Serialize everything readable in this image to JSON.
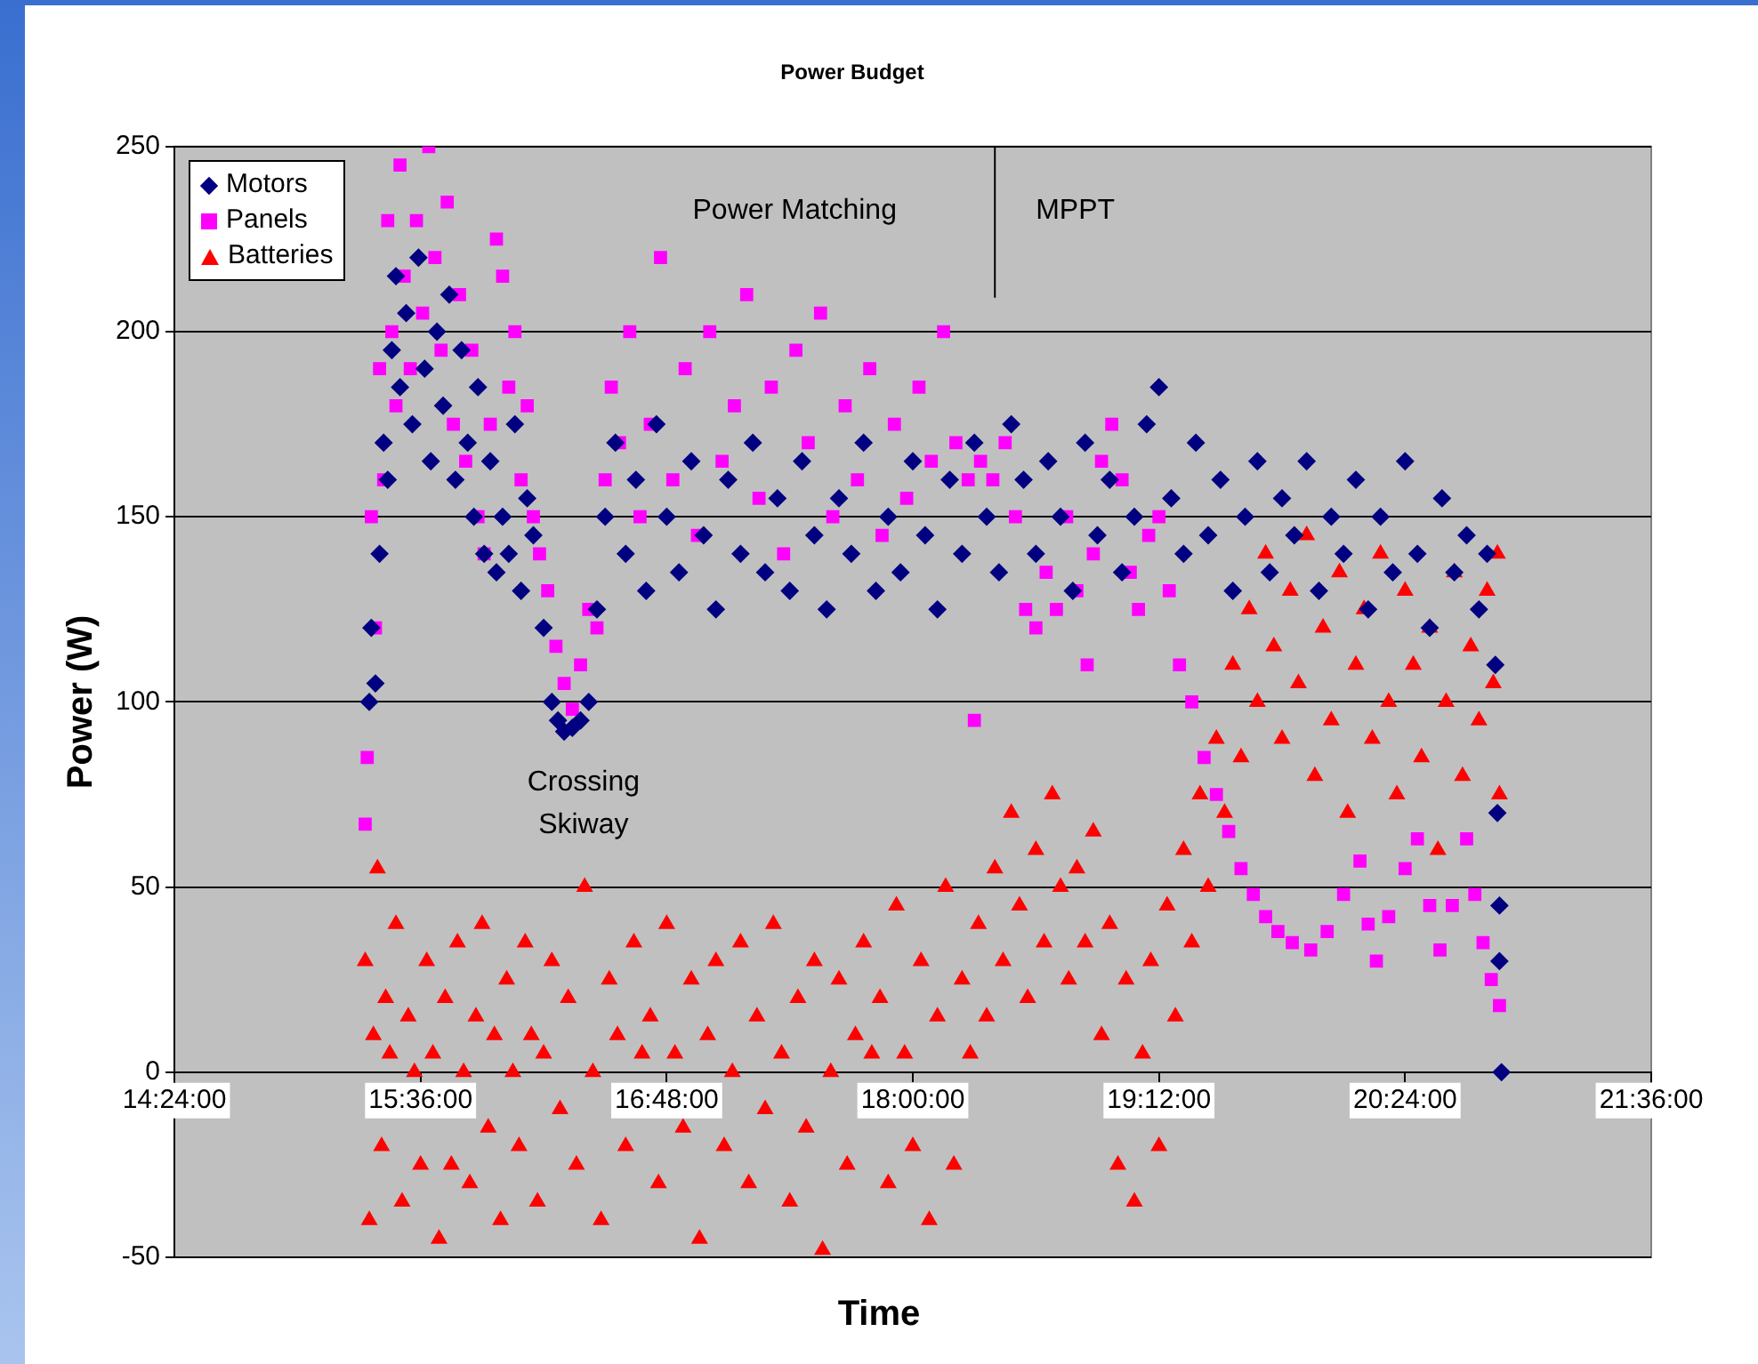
{
  "chart_data": {
    "type": "scatter",
    "title": "Power Budget",
    "xlabel": "Time",
    "ylabel": "Power (W)",
    "xlim": [
      14.4,
      21.6
    ],
    "xticks": [
      {
        "value": 14.4,
        "label": "14:24:00"
      },
      {
        "value": 15.6,
        "label": "15:36:00"
      },
      {
        "value": 16.8,
        "label": "16:48:00"
      },
      {
        "value": 18.0,
        "label": "18:00:00"
      },
      {
        "value": 19.2,
        "label": "19:12:00"
      },
      {
        "value": 20.4,
        "label": "20:24:00"
      },
      {
        "value": 21.6,
        "label": "21:36:00"
      }
    ],
    "ylim": [
      -50,
      250
    ],
    "yticks": [
      -50,
      0,
      50,
      100,
      150,
      200,
      250
    ],
    "grid": "y",
    "legend": "top left",
    "ref_lines": [
      {
        "axis": "x",
        "value": 18.4,
        "color": "#000000"
      }
    ],
    "annotations": [
      "Power Matching",
      "MPPT",
      "Crossing\nSkiway"
    ],
    "series": [
      {
        "name": "Motors",
        "color": "#000080",
        "marker": "diamond",
        "x": [
          15.35,
          15.36,
          15.38,
          15.4,
          15.42,
          15.44,
          15.46,
          15.48,
          15.5,
          15.53,
          15.56,
          15.59,
          15.62,
          15.65,
          15.68,
          15.71,
          15.74,
          15.77,
          15.8,
          15.83,
          15.86,
          15.88,
          15.91,
          15.94,
          15.97,
          16.0,
          16.03,
          16.06,
          16.09,
          16.12,
          16.15,
          16.2,
          16.24,
          16.27,
          16.3,
          16.34,
          16.38,
          16.42,
          16.46,
          16.5,
          16.55,
          16.6,
          16.65,
          16.7,
          16.75,
          16.8,
          16.86,
          16.92,
          16.98,
          17.04,
          17.1,
          17.16,
          17.22,
          17.28,
          17.34,
          17.4,
          17.46,
          17.52,
          17.58,
          17.64,
          17.7,
          17.76,
          17.82,
          17.88,
          17.94,
          18.0,
          18.06,
          18.12,
          18.18,
          18.24,
          18.3,
          18.36,
          18.42,
          18.48,
          18.54,
          18.6,
          18.66,
          18.72,
          18.78,
          18.84,
          18.9,
          18.96,
          19.02,
          19.08,
          19.14,
          19.2,
          19.26,
          19.32,
          19.38,
          19.44,
          19.5,
          19.56,
          19.62,
          19.68,
          19.74,
          19.8,
          19.86,
          19.92,
          19.98,
          20.04,
          20.1,
          20.16,
          20.22,
          20.28,
          20.34,
          20.4,
          20.46,
          20.52,
          20.58,
          20.64,
          20.7,
          20.76,
          20.8,
          20.84,
          20.85,
          20.86,
          20.86,
          20.87
        ],
        "values": [
          100,
          120,
          105,
          140,
          170,
          160,
          195,
          215,
          185,
          205,
          175,
          220,
          190,
          165,
          200,
          180,
          210,
          160,
          195,
          170,
          150,
          185,
          140,
          165,
          135,
          150,
          140,
          175,
          130,
          155,
          145,
          120,
          100,
          95,
          92,
          93,
          95,
          100,
          125,
          150,
          170,
          140,
          160,
          130,
          175,
          150,
          135,
          165,
          145,
          125,
          160,
          140,
          170,
          135,
          155,
          130,
          165,
          145,
          125,
          155,
          140,
          170,
          130,
          150,
          135,
          165,
          145,
          125,
          160,
          140,
          170,
          150,
          135,
          175,
          160,
          140,
          165,
          150,
          130,
          170,
          145,
          160,
          135,
          150,
          175,
          185,
          155,
          140,
          170,
          145,
          160,
          130,
          150,
          165,
          135,
          155,
          145,
          165,
          130,
          150,
          140,
          160,
          125,
          150,
          135,
          165,
          140,
          120,
          155,
          135,
          145,
          125,
          140,
          110,
          70,
          45,
          30,
          0
        ]
      },
      {
        "name": "Panels",
        "color": "#ff00ff",
        "marker": "square",
        "x": [
          15.33,
          15.34,
          15.36,
          15.38,
          15.4,
          15.42,
          15.44,
          15.46,
          15.48,
          15.5,
          15.52,
          15.55,
          15.58,
          15.61,
          15.64,
          15.67,
          15.7,
          15.73,
          15.76,
          15.79,
          15.82,
          15.85,
          15.88,
          15.91,
          15.94,
          15.97,
          16.0,
          16.03,
          16.06,
          16.09,
          16.12,
          16.15,
          16.18,
          16.22,
          16.26,
          16.3,
          16.34,
          16.38,
          16.42,
          16.46,
          16.5,
          16.53,
          16.57,
          16.62,
          16.67,
          16.72,
          16.77,
          16.83,
          16.89,
          16.95,
          17.01,
          17.07,
          17.13,
          17.19,
          17.25,
          17.31,
          17.37,
          17.43,
          17.49,
          17.55,
          17.61,
          17.67,
          17.73,
          17.79,
          17.85,
          17.91,
          17.97,
          18.03,
          18.09,
          18.15,
          18.21,
          18.27,
          18.3,
          18.33,
          18.39,
          18.45,
          18.5,
          18.55,
          18.6,
          18.65,
          18.7,
          18.75,
          18.8,
          18.85,
          18.88,
          18.92,
          18.97,
          19.02,
          19.06,
          19.1,
          19.15,
          19.2,
          19.25,
          19.3,
          19.36,
          19.42,
          19.48,
          19.54,
          19.6,
          19.66,
          19.72,
          19.78,
          19.85,
          19.94,
          20.02,
          20.1,
          20.18,
          20.22,
          20.26,
          20.32,
          20.4,
          20.46,
          20.52,
          20.57,
          20.63,
          20.7,
          20.74,
          20.78,
          20.82,
          20.86
        ],
        "values": [
          67,
          85,
          150,
          120,
          190,
          160,
          230,
          200,
          180,
          245,
          215,
          190,
          230,
          205,
          250,
          220,
          195,
          235,
          175,
          210,
          165,
          195,
          150,
          140,
          175,
          225,
          215,
          185,
          200,
          160,
          180,
          150,
          140,
          130,
          115,
          105,
          98,
          110,
          125,
          120,
          160,
          185,
          170,
          200,
          150,
          175,
          220,
          160,
          190,
          145,
          200,
          165,
          180,
          210,
          155,
          185,
          140,
          195,
          170,
          205,
          150,
          180,
          160,
          190,
          145,
          175,
          155,
          185,
          165,
          200,
          170,
          160,
          95,
          165,
          160,
          170,
          150,
          125,
          120,
          135,
          125,
          150,
          130,
          110,
          140,
          165,
          175,
          160,
          135,
          125,
          145,
          150,
          130,
          110,
          100,
          85,
          75,
          65,
          55,
          48,
          42,
          38,
          35,
          33,
          38,
          48,
          57,
          40,
          30,
          42,
          55,
          63,
          45,
          33,
          45,
          63,
          48,
          35,
          25,
          18
        ]
      },
      {
        "name": "Batteries",
        "color": "#ff0000",
        "marker": "triangle",
        "x": [
          15.33,
          15.35,
          15.37,
          15.39,
          15.41,
          15.43,
          15.45,
          15.48,
          15.51,
          15.54,
          15.57,
          15.6,
          15.63,
          15.66,
          15.69,
          15.72,
          15.75,
          15.78,
          15.81,
          15.84,
          15.87,
          15.9,
          15.93,
          15.96,
          15.99,
          16.02,
          16.05,
          16.08,
          16.11,
          16.14,
          16.17,
          16.2,
          16.24,
          16.28,
          16.32,
          16.36,
          16.4,
          16.44,
          16.48,
          16.52,
          16.56,
          16.6,
          16.64,
          16.68,
          16.72,
          16.76,
          16.8,
          16.84,
          16.88,
          16.92,
          16.96,
          17.0,
          17.04,
          17.08,
          17.12,
          17.16,
          17.2,
          17.24,
          17.28,
          17.32,
          17.36,
          17.4,
          17.44,
          17.48,
          17.52,
          17.56,
          17.6,
          17.64,
          17.68,
          17.72,
          17.76,
          17.8,
          17.84,
          17.88,
          17.92,
          17.96,
          18.0,
          18.04,
          18.08,
          18.12,
          18.16,
          18.2,
          18.24,
          18.28,
          18.32,
          18.36,
          18.4,
          18.44,
          18.48,
          18.52,
          18.56,
          18.6,
          18.64,
          18.68,
          18.72,
          18.76,
          18.8,
          18.84,
          18.88,
          18.92,
          18.96,
          19.0,
          19.04,
          19.08,
          19.12,
          19.16,
          19.2,
          19.24,
          19.28,
          19.32,
          19.36,
          19.4,
          19.44,
          19.48,
          19.52,
          19.56,
          19.6,
          19.64,
          19.68,
          19.72,
          19.76,
          19.8,
          19.84,
          19.88,
          19.92,
          19.96,
          20.0,
          20.04,
          20.08,
          20.12,
          20.16,
          20.2,
          20.24,
          20.28,
          20.32,
          20.36,
          20.4,
          20.44,
          20.48,
          20.52,
          20.56,
          20.6,
          20.64,
          20.68,
          20.72,
          20.76,
          20.8,
          20.83,
          20.85,
          20.86
        ],
        "values": [
          30,
          -40,
          10,
          55,
          -20,
          20,
          5,
          40,
          -35,
          15,
          0,
          -25,
          30,
          5,
          -45,
          20,
          -25,
          35,
          0,
          -30,
          15,
          40,
          -15,
          10,
          -40,
          25,
          0,
          -20,
          35,
          10,
          -35,
          5,
          30,
          -10,
          20,
          -25,
          50,
          0,
          -40,
          25,
          10,
          -20,
          35,
          5,
          15,
          -30,
          40,
          5,
          -15,
          25,
          -45,
          10,
          30,
          -20,
          0,
          35,
          -30,
          15,
          -10,
          40,
          5,
          -35,
          20,
          -15,
          30,
          -48,
          0,
          25,
          -25,
          10,
          35,
          5,
          20,
          -30,
          45,
          5,
          -20,
          30,
          -40,
          15,
          50,
          -25,
          25,
          5,
          40,
          15,
          55,
          30,
          70,
          45,
          20,
          60,
          35,
          75,
          50,
          25,
          55,
          35,
          65,
          10,
          40,
          -25,
          25,
          -35,
          5,
          30,
          -20,
          45,
          15,
          60,
          35,
          75,
          50,
          90,
          70,
          110,
          85,
          125,
          100,
          140,
          115,
          90,
          130,
          105,
          145,
          80,
          120,
          95,
          135,
          70,
          110,
          125,
          90,
          140,
          100,
          75,
          130,
          110,
          85,
          120,
          60,
          100,
          135,
          80,
          115,
          95,
          130,
          105,
          140,
          75
        ]
      }
    ]
  }
}
